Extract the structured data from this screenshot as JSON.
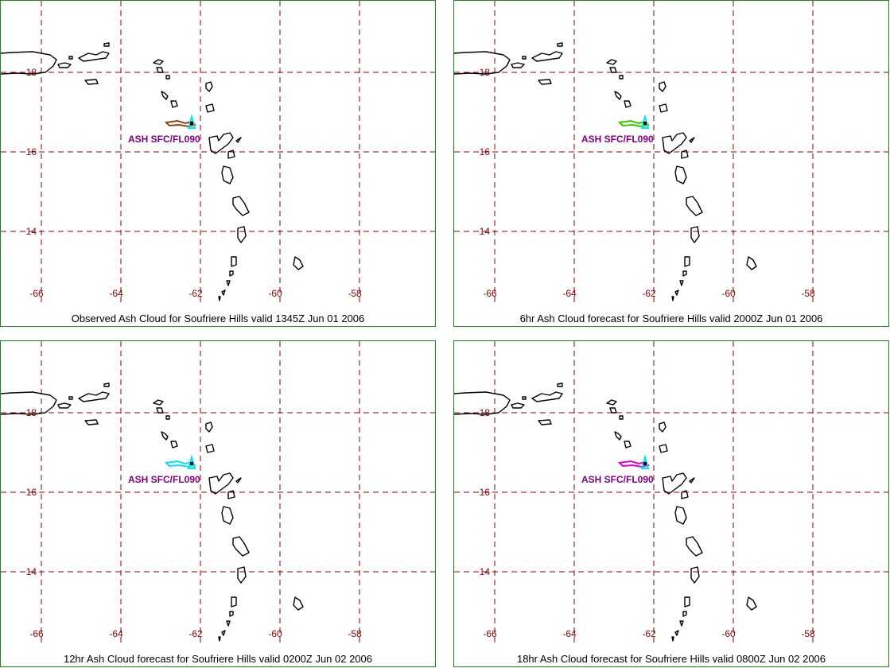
{
  "colors": {
    "border": "#1a8a1a",
    "grid": "#8b0000",
    "tick_label": "#8b0000",
    "coast": "#000000",
    "volcano": "#00e5ee",
    "ash_label": "#800080"
  },
  "map": {
    "lon_labels": [
      "-66",
      "-64",
      "-62",
      "-60",
      "-58"
    ],
    "lat_labels": [
      "18",
      "16",
      "14"
    ]
  },
  "panels": [
    {
      "caption": "Observed Ash Cloud for Soufriere  Hills valid 1345Z Jun 01 2006",
      "ash_label": "ASH SFC/FL090",
      "ash_color": "#8b4513"
    },
    {
      "caption": "6hr Ash Cloud forecast for Soufriere  Hills valid 2000Z Jun 01 2006",
      "ash_label": "ASH SFC/FL090",
      "ash_color": "#33cc00"
    },
    {
      "caption": "12hr Ash Cloud forecast for Soufriere  Hills valid 0200Z Jun 02 2006",
      "ash_label": "ASH SFC/FL090",
      "ash_color": "#00e5ee"
    },
    {
      "caption": "18hr Ash Cloud forecast for Soufriere  Hills valid 0800Z Jun 02 2006",
      "ash_label": "ASH SFC/FL090",
      "ash_color": "#dd00dd"
    }
  ]
}
